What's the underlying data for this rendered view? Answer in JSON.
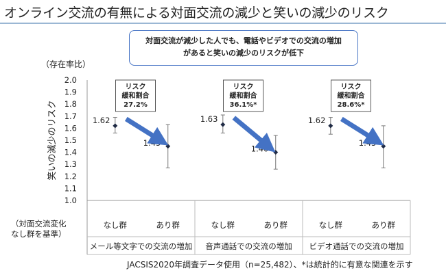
{
  "title": "オンライン交流の有無による対面交流の減少と笑いの減少のリスク",
  "callout": {
    "line1": "対面交流が減少した人でも、電話やビデオでの交流の増加",
    "line2": "があると笑いの減少のリスクが低下"
  },
  "colors": {
    "arrow": "#4472c4",
    "point": "#1f2a44",
    "errorbar": "#777777",
    "callout_border": "#4472c4",
    "title_rule": "#9bb7d4"
  },
  "footnote": "JACSIS2020年調査データ使用（n=25,482）、*は統計的に有意な関連を示す",
  "chart_data": {
    "type": "scatter",
    "ylabel": "笑いの減少のリスク",
    "ylabel_top": "（存在率比）",
    "ylim": [
      1.0,
      2.0
    ],
    "yticks": [
      "1.0",
      "1.1",
      "1.2",
      "1.3",
      "1.4",
      "1.5",
      "1.6",
      "1.7",
      "1.8",
      "1.9",
      "2.0"
    ],
    "reference_label": [
      "（対面交流変化",
      "なし群を基準）"
    ],
    "groups": [
      {
        "name": "メール等文字での交流の増加",
        "categories": [
          "なし群",
          "あり群"
        ],
        "values": [
          1.62,
          1.45
        ],
        "value_labels": [
          "1.62",
          "1.45"
        ],
        "ci_low": [
          1.56,
          1.27
        ],
        "ci_high": [
          1.69,
          1.63
        ],
        "risk_box": [
          "リスク",
          "緩和割合",
          "27.2%"
        ]
      },
      {
        "name": "音声通話での交流の増加",
        "categories": [
          "なし群",
          "あり群"
        ],
        "values": [
          1.63,
          1.4
        ],
        "value_labels": [
          "1.63",
          "1.40"
        ],
        "ci_low": [
          1.56,
          1.26
        ],
        "ci_high": [
          1.71,
          1.54
        ],
        "risk_box": [
          "リスク",
          "緩和割合",
          "36.1%*"
        ]
      },
      {
        "name": "ビデオ通話での交流の増加",
        "categories": [
          "なし群",
          "あり群"
        ],
        "values": [
          1.62,
          1.45
        ],
        "value_labels": [
          "1.62",
          "1.45"
        ],
        "ci_low": [
          1.55,
          1.27
        ],
        "ci_high": [
          1.69,
          1.62
        ],
        "risk_box": [
          "リスク",
          "緩和割合",
          "28.6%*"
        ]
      }
    ]
  }
}
